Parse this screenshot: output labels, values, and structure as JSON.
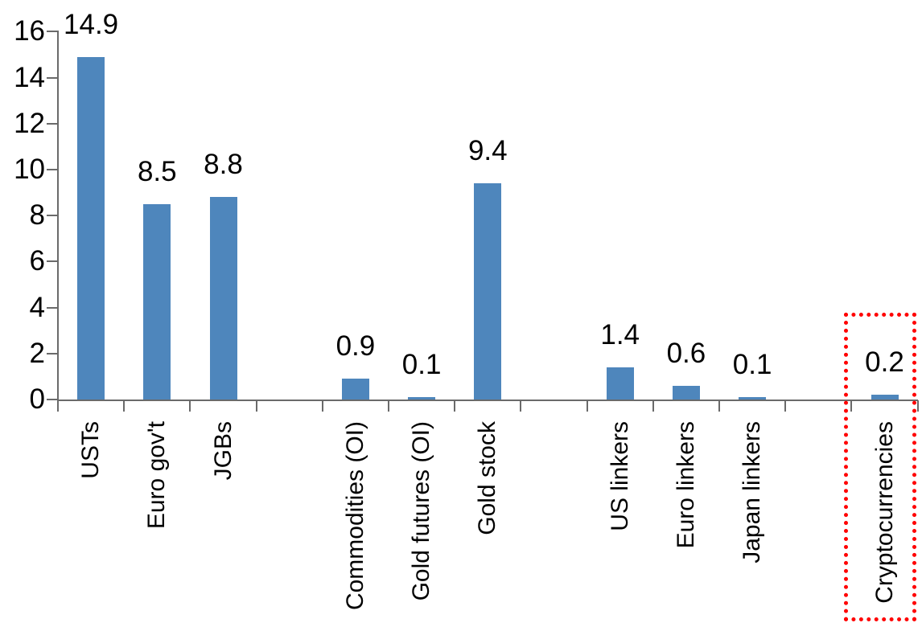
{
  "chart_data": {
    "type": "bar",
    "title": "",
    "categories": [
      "USTs",
      "Euro gov't",
      "JGBs",
      "Commodities (OI)",
      "Gold futures (OI)",
      "Gold stock",
      "US linkers",
      "Euro linkers",
      "Japan linkers",
      "Cryptocurrencies"
    ],
    "values": [
      14.9,
      8.5,
      8.8,
      0.9,
      0.1,
      9.4,
      1.4,
      0.6,
      0.1,
      0.2
    ],
    "data_labels": [
      "14.9",
      "8.5",
      "8.8",
      "0.9",
      "0.1",
      "9.4",
      "1.4",
      "0.6",
      "0.1",
      "0.2"
    ],
    "slots": [
      0,
      1,
      2,
      4,
      5,
      6,
      8,
      9,
      10,
      12
    ],
    "total_slots": 13,
    "group_gaps_after": [
      "JGBs",
      "Gold stock",
      "Japan linkers"
    ],
    "xlabel": "",
    "ylabel": "",
    "ylim": [
      0,
      16
    ],
    "yticks": [
      0,
      2,
      4,
      6,
      8,
      10,
      12,
      14,
      16
    ],
    "grid": false,
    "legend": false,
    "bar_color": "#4E86BC",
    "axis_color": "#6A6A6A",
    "text_color": "#000000",
    "highlight": {
      "target": "Cryptocurrencies",
      "border_color": "#FF0000",
      "border_style": "dotted"
    }
  }
}
